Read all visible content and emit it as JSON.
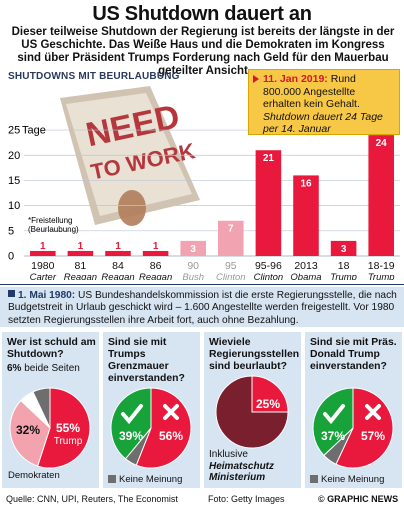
{
  "header": {
    "title": "US Shutdown dauert an",
    "intro": "Dieser teilweise Shutdown der Regierung ist bereits der längste in der US Geschichte. Das Weiße Haus und die Demokraten im Kongress sind über Präsident  Trumps Forderung nach Geld für den Mauerbau geteilter Ansicht",
    "subheading": "SHUTDOWNS MIT BEURLAUBUNG"
  },
  "callout": {
    "date": "11. Jan 2019:",
    "text": " Rund 800.000 Angestellte erhalten kein Gehalt. ",
    "italic": "Shutdown dauert 24 Tage per 14. Januar"
  },
  "chart_data": {
    "type": "bar",
    "ylabel": "Tage",
    "yticks": [
      0,
      5,
      10,
      15,
      20,
      25
    ],
    "ylim": [
      0,
      27
    ],
    "grid": true,
    "categories": [
      "1980",
      "81",
      "84",
      "86",
      "90",
      "95",
      "95-96",
      "2013",
      "18",
      "18-19"
    ],
    "presidents": [
      "Carter",
      "Reagan",
      "Reagan",
      "Reagan",
      "Bush",
      "Clinton",
      "Clinton",
      "Obama",
      "Trump",
      "Trump"
    ],
    "values": [
      1,
      1,
      1,
      1,
      3,
      7,
      21,
      16,
      3,
      24
    ],
    "footnote": "*Freistellung (Beurlaubung)",
    "colors": {
      "bar": "#e8193c",
      "faded": "#f2a3b2",
      "grid": "#bcc6d4"
    }
  },
  "event": {
    "date": "1. Mai 1980:",
    "text": " US Bundeshandelskommission ist die erste Regierungsstelle, die nach Budgetstreit in Urlaub geschickt wird – 1.600 Angestellte werden freigestellt. Vor 1980 setzten Regierungsstellen ihre Arbeit fort, auch ohne Bezahlung."
  },
  "panels": [
    {
      "question": "Wer ist schuld am Shutdown?",
      "both_pct": "6%",
      "both_label": "beide Seiten",
      "slices": [
        {
          "label": "Trump",
          "value": 55,
          "text": "55%",
          "color": "#e8193c"
        },
        {
          "label": "Demokraten",
          "value": 32,
          "text": "32%",
          "color": "#f3a3ad"
        },
        {
          "label": "beide Seiten",
          "value": 6,
          "text": "6%",
          "color": "#ffffff"
        },
        {
          "label": "Keine Meinung",
          "value": 7,
          "text": "",
          "color": "#6e6e6e"
        }
      ],
      "democrats_label": "Demokraten"
    },
    {
      "question": "Sind sie mit Trumps Grenzmauer einverstanden?",
      "yes": "39%",
      "no": "56%",
      "yes_value": 39,
      "no_value": 56,
      "other_value": 5,
      "legend": "Keine Meinung"
    },
    {
      "question": "Wieviele Regierungsstellen sind beurlaubt?",
      "value_text": "25%",
      "value": 25,
      "note_plain": "Inklusive",
      "note_bold": "Heimatschutz Ministerium"
    },
    {
      "question": "Sind sie mit Präs. Donald Trump einverstanden?",
      "yes": "37%",
      "no": "57%",
      "yes_value": 37,
      "no_value": 57,
      "other_value": 6,
      "legend": "Keine Meinung"
    }
  ],
  "footer": {
    "sources": "Quelle: CNN, UPI, Reuters, The Economist",
    "photo": "Foto: Getty Images",
    "brand": "© GRAPHIC NEWS"
  }
}
